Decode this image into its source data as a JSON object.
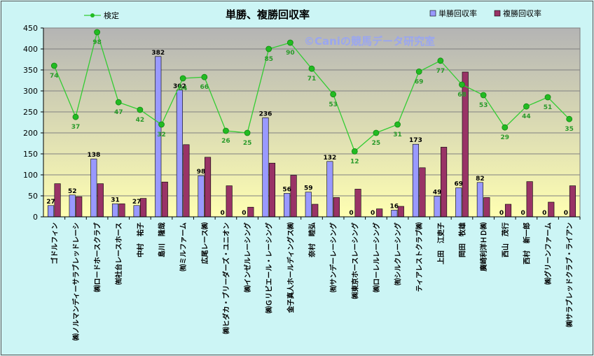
{
  "chart_data": {
    "type": "bar",
    "title": "単勝、複勝回収率",
    "watermark": "©Caniの競馬データ研究室",
    "ylim": [
      0,
      450
    ],
    "yticks": [
      0,
      50,
      100,
      150,
      200,
      250,
      300,
      350,
      400,
      450
    ],
    "grid": true,
    "legend_position": "top",
    "categories": [
      "ゴドルフィン",
      "㈱ノルマンディーサラブレッドレーシ",
      "㈱ロードホースクラブ",
      "㈲社台レースホース",
      "中村　祐子",
      "島川　隆哉",
      "㈲ミルファーム",
      "広尾レース㈱",
      "㈱ヒダカ・ブリーダーズ・ユニオン",
      "㈱インゼルレーシング",
      "㈱Ｇリビエール・レーシング",
      "金子真人ホールディングス㈱",
      "奈村　睦弘",
      "㈲サンデーレーシング",
      "㈱東京ホースレーシング",
      "㈱ローレルレーシング",
      "㈲シルクレーシング",
      "ティアレストクラブ㈱",
      "上田　江吏子",
      "岡田　牧雄",
      "廣崎利洋ＨＤ㈱",
      "西山　茂行",
      "西村　新一郎",
      "㈱グリーンファーム",
      "㈱サラブレッドクラブ・ライアン"
    ],
    "series": [
      {
        "name": "単勝回収率",
        "color": "#9999ff",
        "values": [
          27,
          52,
          138,
          31,
          27,
          382,
          302,
          98,
          0,
          0,
          236,
          56,
          59,
          132,
          0,
          0,
          16,
          173,
          49,
          69,
          82,
          0,
          0,
          0,
          0
        ]
      },
      {
        "name": "複勝回収率",
        "color": "#993366",
        "values": [
          79,
          48,
          79,
          31,
          44,
          83,
          172,
          142,
          74,
          23,
          128,
          99,
          30,
          46,
          66,
          19,
          25,
          117,
          166,
          345,
          46,
          30,
          84,
          35,
          74
        ]
      },
      {
        "name": "検定",
        "type": "line",
        "color": "#33cc33",
        "values": [
          360,
          238,
          440,
          273,
          255,
          220,
          330,
          333,
          205,
          200,
          400,
          415,
          353,
          292,
          156,
          200,
          220,
          346,
          372,
          315,
          290,
          213,
          263,
          285,
          233
        ],
        "labels": [
          74,
          37,
          98,
          47,
          42,
          32,
          64,
          66,
          26,
          25,
          85,
          90,
          71,
          53,
          12,
          25,
          31,
          69,
          77,
          68,
          53,
          29,
          44,
          51,
          35
        ]
      }
    ]
  }
}
